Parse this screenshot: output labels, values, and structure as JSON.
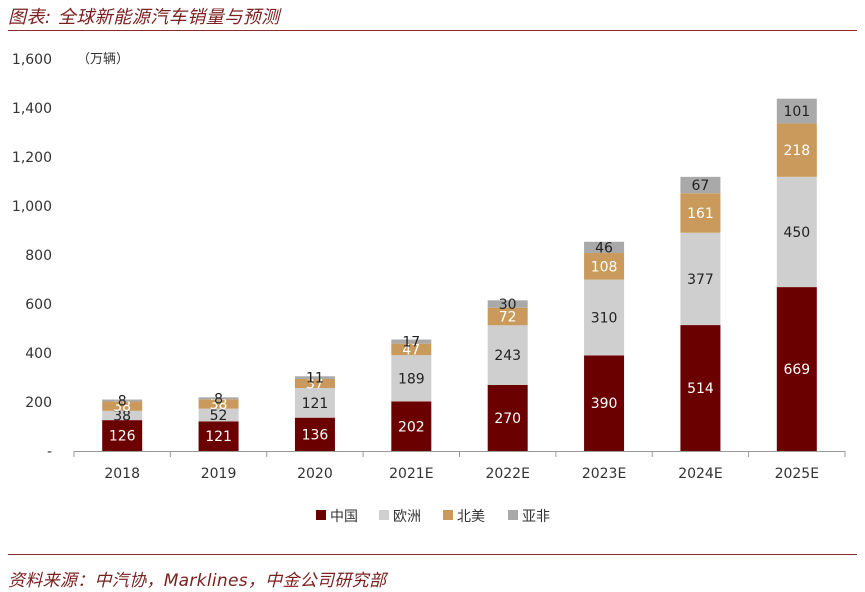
{
  "header": {
    "title": "图表: 全球新能源汽车销量与预测"
  },
  "footer": {
    "source": "资料来源：中汽协，Marklines，中金公司研究部"
  },
  "colors": {
    "中国": "#6b0000",
    "欧洲": "#cfcfcf",
    "北美": "#c99a5b",
    "亚非": "#a9a9a9",
    "rule": "#8b2a2a",
    "text": "#333333"
  },
  "chart_data": {
    "type": "bar",
    "stacked": true,
    "unit_label": "（万辆）",
    "categories": [
      "2018",
      "2019",
      "2020",
      "2021E",
      "2022E",
      "2023E",
      "2024E",
      "2025E"
    ],
    "series": [
      {
        "name": "中国",
        "values": [
          126,
          121,
          136,
          202,
          270,
          390,
          514,
          669
        ],
        "label_color": "#ffffff"
      },
      {
        "name": "欧洲",
        "values": [
          38,
          52,
          121,
          189,
          243,
          310,
          377,
          450
        ],
        "label_color": "#222222"
      },
      {
        "name": "北美",
        "values": [
          38,
          38,
          37,
          47,
          72,
          108,
          161,
          218
        ],
        "label_color": "#ffffff"
      },
      {
        "name": "亚非",
        "values": [
          8,
          8,
          11,
          17,
          30,
          46,
          67,
          101
        ],
        "label_color": "#222222"
      }
    ],
    "yticks": [
      "-",
      "200",
      "400",
      "600",
      "800",
      "1,000",
      "1,200",
      "1,400",
      "1,600"
    ],
    "ylim": [
      0,
      1600
    ],
    "legend_position": "bottom",
    "grid": false
  }
}
